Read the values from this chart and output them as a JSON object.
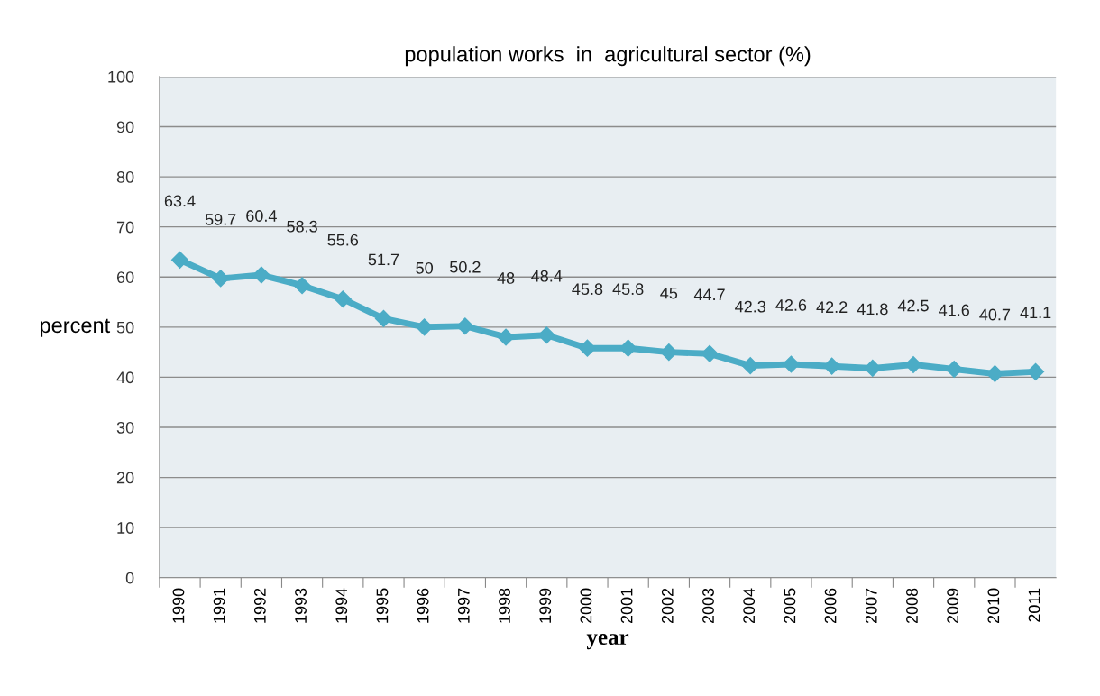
{
  "chart_data": {
    "type": "line",
    "title": "population works  in  agricultural sector (%)",
    "xlabel": "year",
    "ylabel": "percent",
    "categories": [
      "1990",
      "1991",
      "1992",
      "1993",
      "1994",
      "1995",
      "1996",
      "1997",
      "1998",
      "1999",
      "2000",
      "2001",
      "2002",
      "2003",
      "2004",
      "2005",
      "2006",
      "2007",
      "2008",
      "2009",
      "2010",
      "2011"
    ],
    "series": [
      {
        "color": "#4bacc6",
        "values": [
          63.4,
          59.7,
          60.4,
          58.3,
          55.6,
          51.7,
          50,
          50.2,
          48,
          48.4,
          45.8,
          45.8,
          45,
          44.7,
          42.3,
          42.6,
          42.2,
          41.8,
          42.5,
          41.6,
          40.7,
          41.1
        ]
      }
    ],
    "ylim": [
      0,
      100
    ],
    "yticks": [
      0,
      10,
      20,
      30,
      40,
      50,
      60,
      70,
      80,
      90,
      100
    ],
    "grid": "y",
    "legend": false,
    "marker": "diamond",
    "line_style": "solid",
    "data_labels": true
  }
}
